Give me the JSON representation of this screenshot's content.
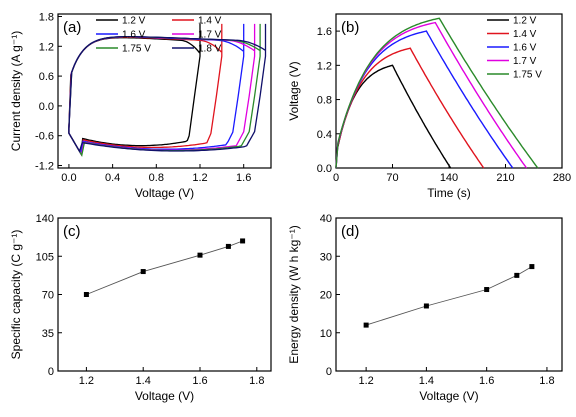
{
  "chart_data": [
    {
      "type": "line",
      "panel_label": "(a)",
      "xlabel": "Voltage (V)",
      "ylabel": "Current density (A g⁻¹)",
      "xlim": [
        -0.1,
        1.85
      ],
      "ylim": [
        -1.25,
        1.85
      ],
      "xticks": [
        0.0,
        0.4,
        0.8,
        1.2,
        1.6
      ],
      "xtick_labels": [
        "0.0",
        "0.4",
        "0.8",
        "1.2",
        "1.6"
      ],
      "yticks": [
        -1.2,
        -0.6,
        0.0,
        0.6,
        1.2,
        1.8
      ],
      "ytick_labels": [
        "-1.2",
        "-0.6",
        "0.0",
        "0.6",
        "1.2",
        "1.8"
      ],
      "legend": "top-left",
      "series": [
        {
          "name": "1.2 V",
          "color": "#000000",
          "vmax": 1.2
        },
        {
          "name": "1.4 V",
          "color": "#e0141e",
          "vmax": 1.4
        },
        {
          "name": "1.6 V",
          "color": "#1a1aff",
          "vmax": 1.6
        },
        {
          "name": "1.7 V",
          "color": "#e000e0",
          "vmax": 1.7
        },
        {
          "name": "1.75 V",
          "color": "#2a8a2a",
          "vmax": 1.75
        },
        {
          "name": "1.8 V",
          "color": "#10106a",
          "vmax": 1.8
        }
      ]
    },
    {
      "type": "line",
      "panel_label": "(b)",
      "xlabel": "Time (s)",
      "ylabel": "Voltage (V)",
      "xlim": [
        0,
        280
      ],
      "ylim": [
        0,
        1.8
      ],
      "xticks": [
        0,
        70,
        140,
        210,
        280
      ],
      "xtick_labels": [
        "0",
        "70",
        "140",
        "210",
        "280"
      ],
      "yticks": [
        0.0,
        0.4,
        0.8,
        1.2,
        1.6
      ],
      "ytick_labels": [
        "0.0",
        "0.4",
        "0.8",
        "1.2",
        "1.6"
      ],
      "legend": "top-right",
      "series": [
        {
          "name": "1.2 V",
          "color": "#000000",
          "vmax": 1.2,
          "t_peak": 70,
          "t_end": 142
        },
        {
          "name": "1.4 V",
          "color": "#e0141e",
          "vmax": 1.4,
          "t_peak": 92,
          "t_end": 183
        },
        {
          "name": "1.6 V",
          "color": "#1a1aff",
          "vmax": 1.6,
          "t_peak": 112,
          "t_end": 219
        },
        {
          "name": "1.7 V",
          "color": "#e000e0",
          "vmax": 1.7,
          "t_peak": 123,
          "t_end": 236
        },
        {
          "name": "1.75 V",
          "color": "#2a8a2a",
          "vmax": 1.75,
          "t_peak": 128,
          "t_end": 250
        }
      ]
    },
    {
      "type": "line",
      "panel_label": "(c)",
      "xlabel": "Voltage (V)",
      "ylabel": "Specific capacity (C g⁻¹)",
      "xlim": [
        1.1,
        1.85
      ],
      "ylim": [
        0,
        140
      ],
      "xticks": [
        1.2,
        1.4,
        1.6,
        1.8
      ],
      "xtick_labels": [
        "1.2",
        "1.4",
        "1.6",
        "1.8"
      ],
      "yticks": [
        0,
        35,
        70,
        105,
        140
      ],
      "ytick_labels": [
        "0",
        "35",
        "70",
        "105",
        "140"
      ],
      "x": [
        1.2,
        1.4,
        1.6,
        1.7,
        1.75
      ],
      "values": [
        70,
        91,
        106,
        114,
        119
      ]
    },
    {
      "type": "line",
      "panel_label": "(d)",
      "xlabel": "Voltage (V)",
      "ylabel": "Energy density (W h kg⁻¹)",
      "xlim": [
        1.1,
        1.85
      ],
      "ylim": [
        0,
        40
      ],
      "xticks": [
        1.2,
        1.4,
        1.6,
        1.8
      ],
      "xtick_labels": [
        "1.2",
        "1.4",
        "1.6",
        "1.8"
      ],
      "yticks": [
        0,
        10,
        20,
        30,
        40
      ],
      "ytick_labels": [
        "0",
        "10",
        "20",
        "30",
        "40"
      ],
      "x": [
        1.2,
        1.4,
        1.6,
        1.7,
        1.75
      ],
      "values": [
        12,
        17,
        21.3,
        25,
        27.3
      ]
    }
  ]
}
